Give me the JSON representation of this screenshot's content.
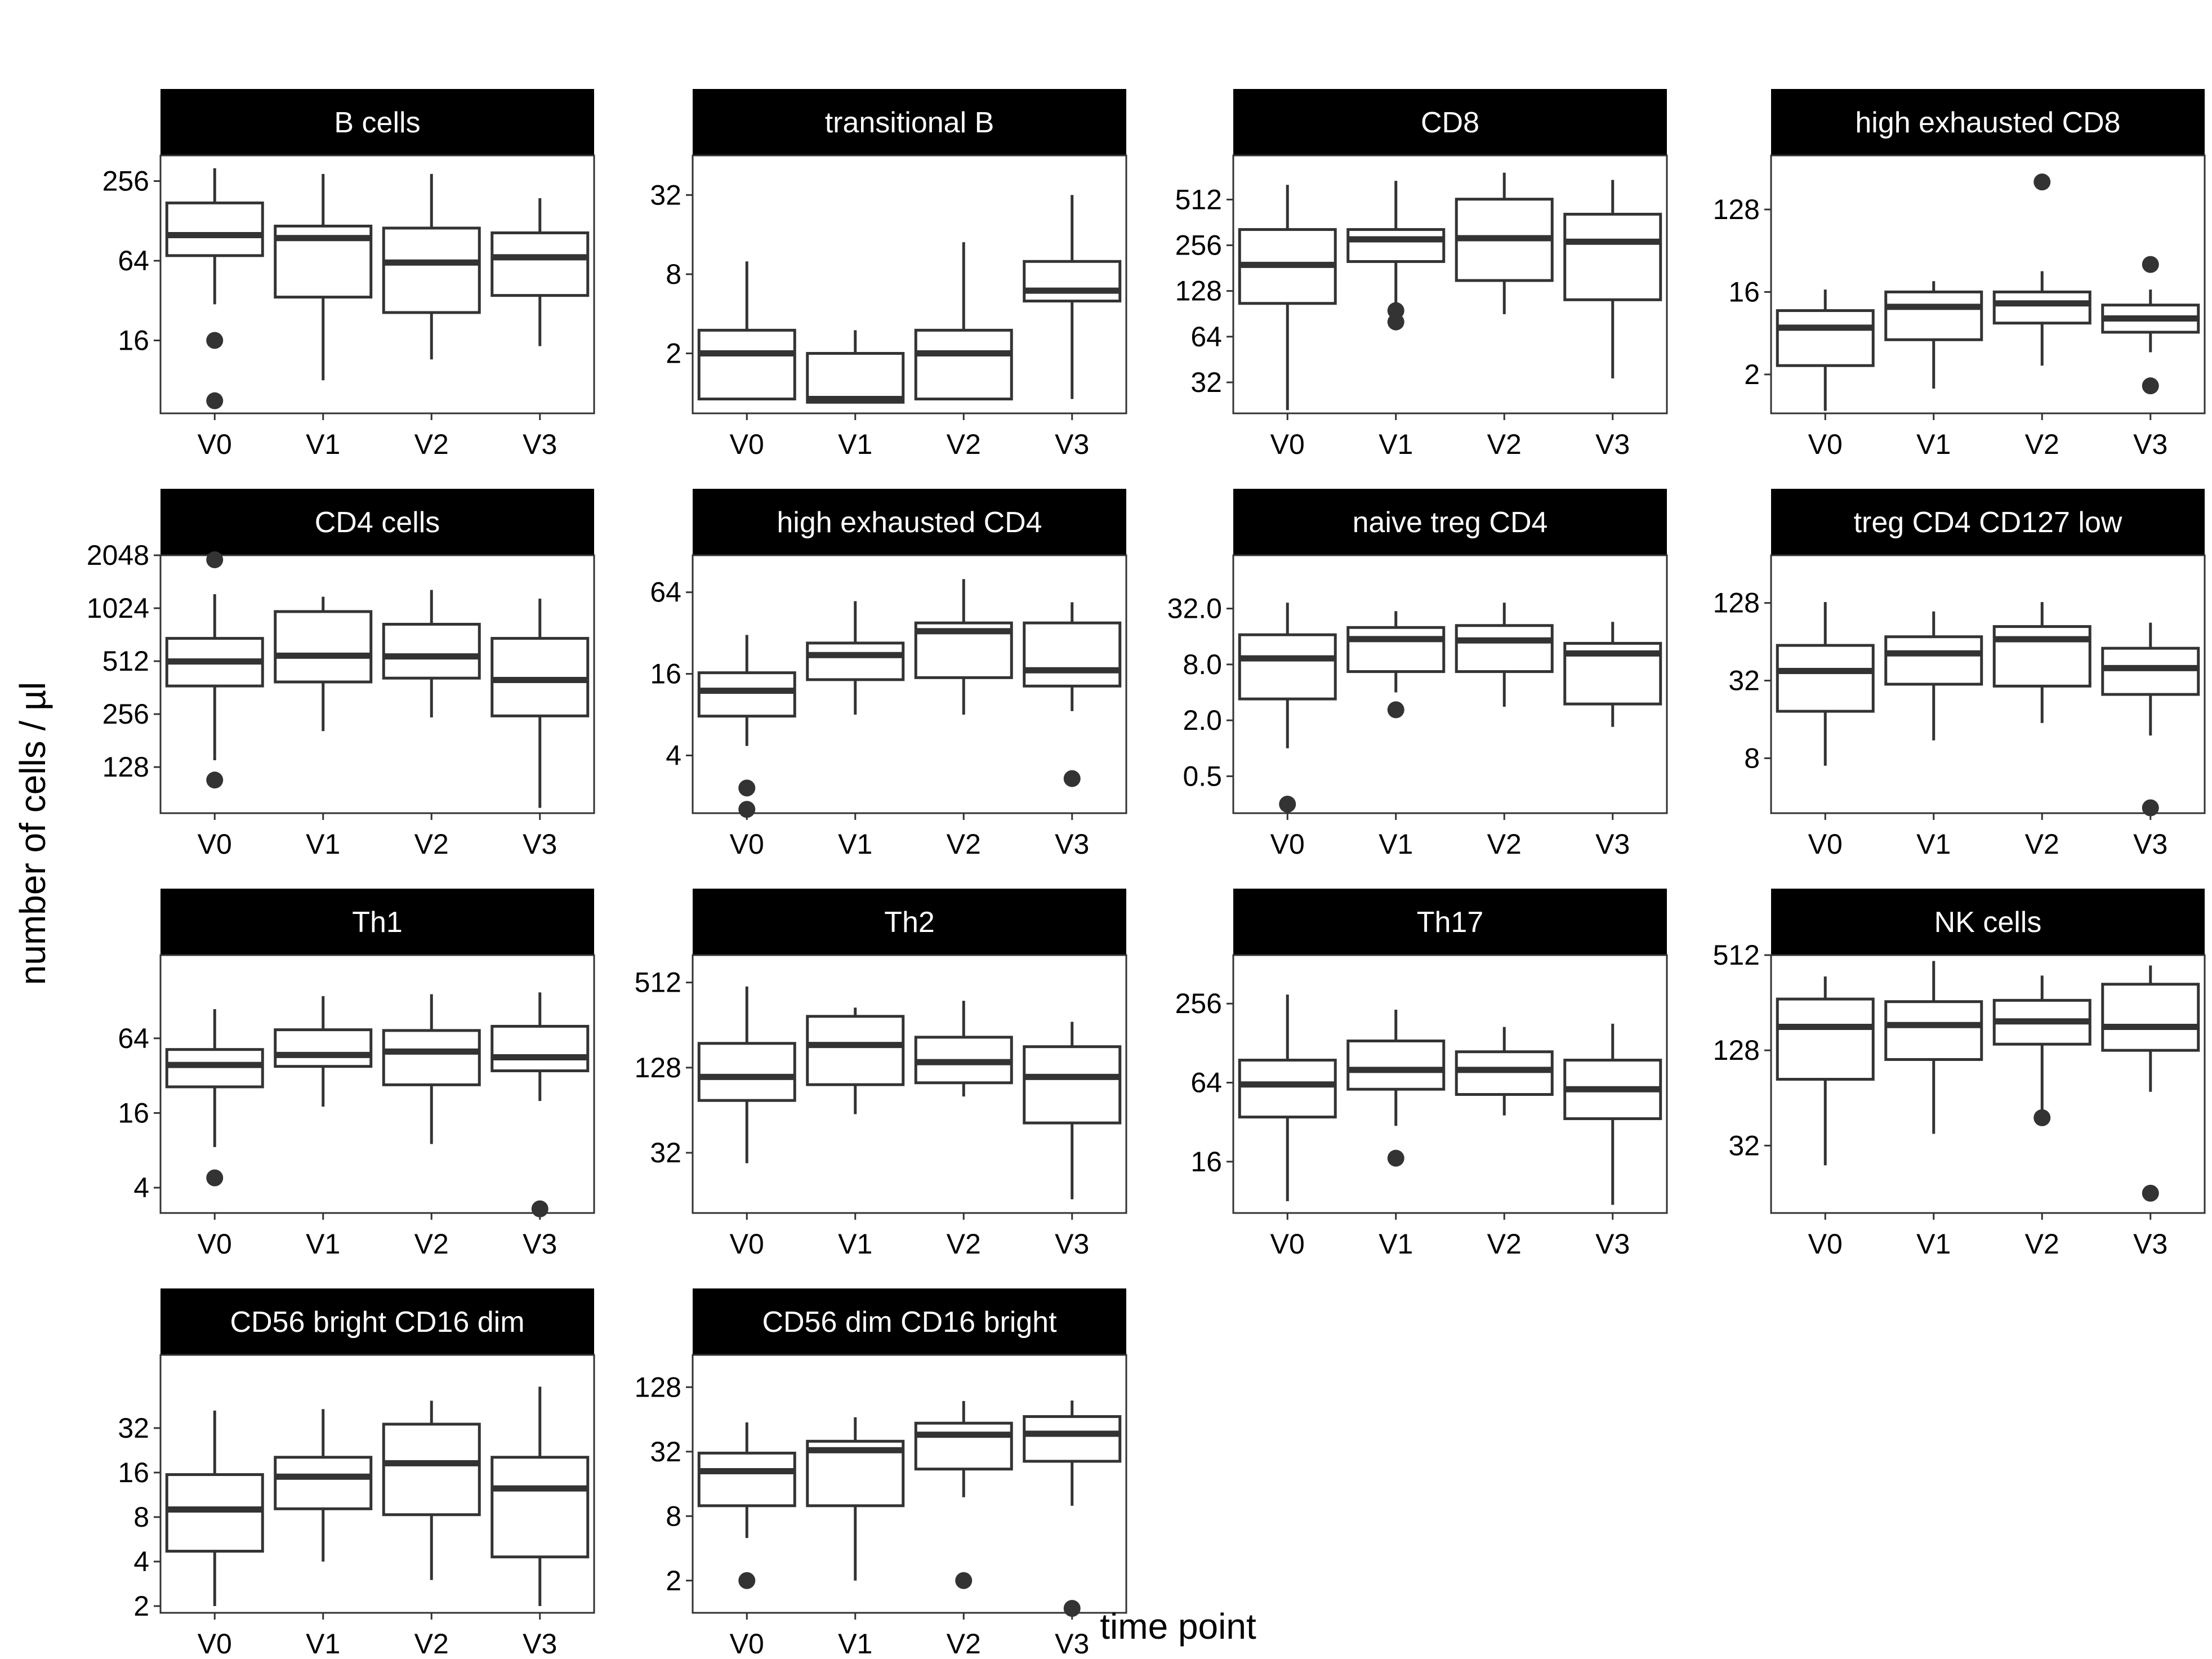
{
  "figure": {
    "xlabel": "time point",
    "ylabel": "number of cells / µl"
  },
  "colors": {
    "strip": "#000000",
    "strip_text": "#ffffff",
    "box": "#333333",
    "panel_border": "#333333",
    "background": "#ffffff"
  },
  "chart_data": [
    {
      "type": "box",
      "scale": "log2",
      "title": "B cells",
      "categories": [
        "V0",
        "V1",
        "V2",
        "V3"
      ],
      "ylim": [
        4.5,
        400
      ],
      "yticks": [
        16,
        64,
        256
      ],
      "ytick_labels": [
        "16",
        "64",
        "256"
      ],
      "boxes": [
        {
          "low": 30,
          "q1": 70,
          "median": 100,
          "q3": 175,
          "high": 320,
          "outliers": [
            16,
            5.6
          ]
        },
        {
          "low": 8,
          "q1": 34,
          "median": 95,
          "q3": 117,
          "high": 290,
          "outliers": []
        },
        {
          "low": 11.5,
          "q1": 26,
          "median": 62,
          "q3": 113,
          "high": 290,
          "outliers": []
        },
        {
          "low": 14.5,
          "q1": 35,
          "median": 68,
          "q3": 104,
          "high": 190,
          "outliers": []
        }
      ]
    },
    {
      "type": "box",
      "scale": "log2",
      "title": "transitional B",
      "categories": [
        "V0",
        "V1",
        "V2",
        "V3"
      ],
      "ylim": [
        0.7,
        64
      ],
      "yticks": [
        2,
        8,
        32
      ],
      "ytick_labels": [
        "2",
        "8",
        "32"
      ],
      "boxes": [
        {
          "low": 0.9,
          "q1": 0.9,
          "median": 2,
          "q3": 3,
          "high": 10,
          "outliers": []
        },
        {
          "low": 0.85,
          "q1": 0.85,
          "median": 0.9,
          "q3": 2,
          "high": 3,
          "outliers": []
        },
        {
          "low": 0.9,
          "q1": 0.9,
          "median": 2,
          "q3": 3,
          "high": 14,
          "outliers": []
        },
        {
          "low": 0.9,
          "q1": 5,
          "median": 6,
          "q3": 10,
          "high": 32,
          "outliers": []
        }
      ]
    },
    {
      "type": "box",
      "scale": "log2",
      "title": "CD8",
      "categories": [
        "V0",
        "V1",
        "V2",
        "V3"
      ],
      "ylim": [
        20,
        1000
      ],
      "yticks": [
        32,
        64,
        128,
        256,
        512
      ],
      "ytick_labels": [
        "32",
        "64",
        "128",
        "256",
        "512"
      ],
      "boxes": [
        {
          "low": 21,
          "q1": 106,
          "median": 190,
          "q3": 325,
          "high": 640,
          "outliers": []
        },
        {
          "low": 105,
          "q1": 200,
          "median": 280,
          "q3": 325,
          "high": 680,
          "outliers": [
            95,
            80
          ]
        },
        {
          "low": 90,
          "q1": 150,
          "median": 285,
          "q3": 515,
          "high": 770,
          "outliers": []
        },
        {
          "low": 34,
          "q1": 112,
          "median": 270,
          "q3": 410,
          "high": 690,
          "outliers": []
        }
      ]
    },
    {
      "type": "box",
      "scale": "log2",
      "title": "high exhausted CD8",
      "categories": [
        "V0",
        "V1",
        "V2",
        "V3"
      ],
      "ylim": [
        0.75,
        500
      ],
      "yticks": [
        2,
        16,
        128
      ],
      "ytick_labels": [
        "2",
        "16",
        "128"
      ],
      "boxes": [
        {
          "low": 0.8,
          "q1": 2.5,
          "median": 6.5,
          "q3": 10,
          "high": 17,
          "outliers": []
        },
        {
          "low": 1.4,
          "q1": 4.8,
          "median": 11,
          "q3": 16,
          "high": 21,
          "outliers": []
        },
        {
          "low": 2.5,
          "q1": 7.3,
          "median": 12,
          "q3": 16,
          "high": 27,
          "outliers": [
            256
          ]
        },
        {
          "low": 3.5,
          "q1": 5.8,
          "median": 8.2,
          "q3": 11.5,
          "high": 17,
          "outliers": [
            32,
            1.5
          ]
        }
      ]
    },
    {
      "type": "box",
      "scale": "log2",
      "title": "CD4 cells",
      "categories": [
        "V0",
        "V1",
        "V2",
        "V3"
      ],
      "ylim": [
        70,
        2048
      ],
      "yticks": [
        128,
        256,
        512,
        1024,
        2048
      ],
      "ytick_labels": [
        "128",
        "256",
        "512",
        "1024",
        "2048"
      ],
      "boxes": [
        {
          "low": 140,
          "q1": 370,
          "median": 510,
          "q3": 690,
          "high": 1230,
          "outliers": [
            1930,
            108
          ]
        },
        {
          "low": 205,
          "q1": 390,
          "median": 550,
          "q3": 980,
          "high": 1190,
          "outliers": []
        },
        {
          "low": 245,
          "q1": 410,
          "median": 545,
          "q3": 830,
          "high": 1300,
          "outliers": []
        },
        {
          "low": 75,
          "q1": 250,
          "median": 400,
          "q3": 690,
          "high": 1160,
          "outliers": []
        }
      ]
    },
    {
      "type": "box",
      "scale": "log2",
      "title": "high exhausted CD4",
      "categories": [
        "V0",
        "V1",
        "V2",
        "V3"
      ],
      "ylim": [
        1.5,
        120
      ],
      "yticks": [
        4,
        16,
        64
      ],
      "ytick_labels": [
        "4",
        "16",
        "64"
      ],
      "boxes": [
        {
          "low": 4.7,
          "q1": 7.8,
          "median": 12,
          "q3": 16.3,
          "high": 31,
          "outliers": [
            2.3,
            1.6
          ]
        },
        {
          "low": 8,
          "q1": 14.5,
          "median": 22,
          "q3": 27,
          "high": 55,
          "outliers": []
        },
        {
          "low": 8,
          "q1": 15,
          "median": 33,
          "q3": 38,
          "high": 80,
          "outliers": []
        },
        {
          "low": 8.5,
          "q1": 13,
          "median": 17,
          "q3": 38,
          "high": 54,
          "outliers": [
            2.7
          ]
        }
      ]
    },
    {
      "type": "box",
      "scale": "log2",
      "title": "naive treg CD4",
      "categories": [
        "V0",
        "V1",
        "V2",
        "V3"
      ],
      "ylim": [
        0.2,
        120
      ],
      "yticks": [
        0.5,
        2,
        8,
        32
      ],
      "ytick_labels": [
        "0.5",
        "2.0",
        "8.0",
        "32.0"
      ],
      "boxes": [
        {
          "low": 1,
          "q1": 3.4,
          "median": 9.3,
          "q3": 16.7,
          "high": 37,
          "outliers": [
            0.25
          ]
        },
        {
          "low": 4,
          "q1": 6.7,
          "median": 15,
          "q3": 20,
          "high": 30,
          "outliers": [
            2.6
          ]
        },
        {
          "low": 2.8,
          "q1": 6.7,
          "median": 14.5,
          "q3": 21,
          "high": 37,
          "outliers": []
        },
        {
          "low": 1.7,
          "q1": 3,
          "median": 10.5,
          "q3": 13.5,
          "high": 23,
          "outliers": []
        }
      ]
    },
    {
      "type": "box",
      "scale": "log2",
      "title": "treg CD4 CD127 low",
      "categories": [
        "V0",
        "V1",
        "V2",
        "V3"
      ],
      "ylim": [
        3,
        300
      ],
      "yticks": [
        8,
        32,
        128
      ],
      "ytick_labels": [
        "8",
        "32",
        "128"
      ],
      "boxes": [
        {
          "low": 7,
          "q1": 18.5,
          "median": 38,
          "q3": 60,
          "high": 130,
          "outliers": []
        },
        {
          "low": 11,
          "q1": 30,
          "median": 52,
          "q3": 70,
          "high": 110,
          "outliers": []
        },
        {
          "low": 15,
          "q1": 29,
          "median": 67,
          "q3": 84,
          "high": 130,
          "outliers": []
        },
        {
          "low": 12,
          "q1": 25,
          "median": 40,
          "q3": 57,
          "high": 90,
          "outliers": [
            3.3
          ]
        }
      ]
    },
    {
      "type": "box",
      "scale": "log2",
      "title": "Th1",
      "categories": [
        "V0",
        "V1",
        "V2",
        "V3"
      ],
      "ylim": [
        2.5,
        300
      ],
      "yticks": [
        4,
        16,
        64
      ],
      "ytick_labels": [
        "4",
        "16",
        "64"
      ],
      "boxes": [
        {
          "low": 8.5,
          "q1": 26,
          "median": 39,
          "q3": 52,
          "high": 110,
          "outliers": [
            4.8
          ]
        },
        {
          "low": 18,
          "q1": 38,
          "median": 47,
          "q3": 75,
          "high": 140,
          "outliers": []
        },
        {
          "low": 9,
          "q1": 27,
          "median": 50,
          "q3": 74,
          "high": 145,
          "outliers": []
        },
        {
          "low": 20,
          "q1": 35,
          "median": 45,
          "q3": 80,
          "high": 150,
          "outliers": [
            2.7
          ]
        }
      ]
    },
    {
      "type": "box",
      "scale": "log2",
      "title": "Th2",
      "categories": [
        "V0",
        "V1",
        "V2",
        "V3"
      ],
      "ylim": [
        12,
        800
      ],
      "yticks": [
        32,
        128,
        512
      ],
      "ytick_labels": [
        "32",
        "128",
        "512"
      ],
      "boxes": [
        {
          "low": 27,
          "q1": 75,
          "median": 110,
          "q3": 190,
          "high": 480,
          "outliers": []
        },
        {
          "low": 60,
          "q1": 97,
          "median": 185,
          "q3": 295,
          "high": 340,
          "outliers": []
        },
        {
          "low": 80,
          "q1": 100,
          "median": 140,
          "q3": 210,
          "high": 380,
          "outliers": []
        },
        {
          "low": 15,
          "q1": 52,
          "median": 110,
          "q3": 180,
          "high": 270,
          "outliers": []
        }
      ]
    },
    {
      "type": "box",
      "scale": "log2",
      "title": "Th17",
      "categories": [
        "V0",
        "V1",
        "V2",
        "V3"
      ],
      "ylim": [
        6.5,
        600
      ],
      "yticks": [
        16,
        64,
        256
      ],
      "ytick_labels": [
        "16",
        "64",
        "256"
      ],
      "boxes": [
        {
          "low": 8,
          "q1": 35,
          "median": 62,
          "q3": 95,
          "high": 300,
          "outliers": []
        },
        {
          "low": 30,
          "q1": 57,
          "median": 80,
          "q3": 133,
          "high": 230,
          "outliers": [
            17
          ]
        },
        {
          "low": 36,
          "q1": 52,
          "median": 80,
          "q3": 110,
          "high": 170,
          "outliers": []
        },
        {
          "low": 7.5,
          "q1": 34,
          "median": 57,
          "q3": 95,
          "high": 180,
          "outliers": []
        }
      ]
    },
    {
      "type": "box",
      "scale": "log2",
      "title": "NK cells",
      "categories": [
        "V0",
        "V1",
        "V2",
        "V3"
      ],
      "ylim": [
        12,
        512
      ],
      "yticks": [
        32,
        128,
        512
      ],
      "ytick_labels": [
        "32",
        "128",
        "512"
      ],
      "boxes": [
        {
          "low": 24,
          "q1": 84,
          "median": 180,
          "q3": 270,
          "high": 375,
          "outliers": []
        },
        {
          "low": 38,
          "q1": 112,
          "median": 185,
          "q3": 260,
          "high": 470,
          "outliers": []
        },
        {
          "low": 50,
          "q1": 140,
          "median": 195,
          "q3": 265,
          "high": 380,
          "outliers": [
            48
          ]
        },
        {
          "low": 70,
          "q1": 128,
          "median": 180,
          "q3": 335,
          "high": 440,
          "outliers": [
            16
          ]
        }
      ]
    },
    {
      "type": "box",
      "scale": "log2",
      "title": "CD56 bright CD16 dim",
      "categories": [
        "V0",
        "V1",
        "V2",
        "V3"
      ],
      "ylim": [
        1.8,
        100
      ],
      "yticks": [
        2,
        4,
        8,
        16,
        32
      ],
      "ytick_labels": [
        "2",
        "4",
        "8",
        "16",
        "32"
      ],
      "boxes": [
        {
          "low": 2,
          "q1": 4.7,
          "median": 9,
          "q3": 15.5,
          "high": 42,
          "outliers": []
        },
        {
          "low": 4,
          "q1": 9.1,
          "median": 15,
          "q3": 20.3,
          "high": 43,
          "outliers": []
        },
        {
          "low": 3,
          "q1": 8.3,
          "median": 18.5,
          "q3": 34,
          "high": 49,
          "outliers": []
        },
        {
          "low": 2,
          "q1": 4.3,
          "median": 12.5,
          "q3": 20.3,
          "high": 61,
          "outliers": []
        }
      ]
    },
    {
      "type": "box",
      "scale": "log2",
      "title": "CD56 dim CD16 bright",
      "categories": [
        "V0",
        "V1",
        "V2",
        "V3"
      ],
      "ylim": [
        1,
        256
      ],
      "yticks": [
        2,
        8,
        32,
        128
      ],
      "ytick_labels": [
        "2",
        "8",
        "32",
        "128"
      ],
      "boxes": [
        {
          "low": 5,
          "q1": 10,
          "median": 21,
          "q3": 31,
          "high": 60,
          "outliers": [
            2
          ]
        },
        {
          "low": 2,
          "q1": 10,
          "median": 33,
          "q3": 40,
          "high": 67,
          "outliers": []
        },
        {
          "low": 12,
          "q1": 22,
          "median": 46,
          "q3": 59,
          "high": 95,
          "outliers": [
            2
          ]
        },
        {
          "low": 10,
          "q1": 26,
          "median": 47,
          "q3": 68,
          "high": 96,
          "outliers": [
            1.1
          ]
        }
      ]
    }
  ]
}
